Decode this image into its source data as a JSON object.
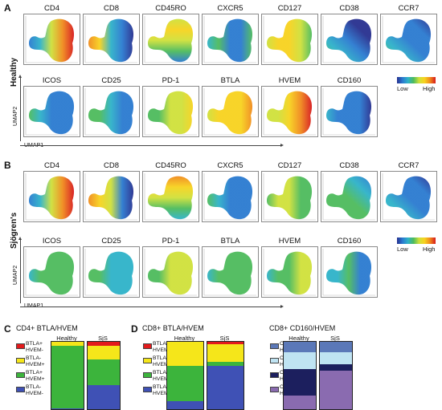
{
  "panel_letters": {
    "a": "A",
    "b": "B",
    "c": "C",
    "d": "D"
  },
  "cohorts": {
    "healthy": "Healthy",
    "sjogren": "Sjögren's"
  },
  "markers_row1": [
    "CD4",
    "CD8",
    "CD45RO",
    "CXCR5",
    "CD127",
    "CD38",
    "CCR7"
  ],
  "markers_row2": [
    "ICOS",
    "CD25",
    "PD-1",
    "BTLA",
    "HVEM",
    "CD160"
  ],
  "axes": {
    "umap1": "UMAP1",
    "umap2": "UMAP2"
  },
  "color_scale": {
    "low": "Low",
    "high": "High",
    "colors": [
      "#27308f",
      "#2a7ad0",
      "#2eb2c8",
      "#4dbb5c",
      "#cfe03a",
      "#f7d21e",
      "#f08a1c",
      "#d7191c"
    ]
  },
  "section_c": {
    "title": "CD4+ BTLA/HVEM"
  },
  "section_d1": {
    "title": "CD8+ BTLA/HVEM"
  },
  "section_d2": {
    "title": "CD8+ CD160/HVEM"
  },
  "group_labels": {
    "healthy": "Healthy",
    "sjs": "SjS"
  },
  "chart_data": [
    {
      "type": "bar",
      "title": "CD4+ BTLA/HVEM",
      "categories": [
        "Healthy",
        "SjS"
      ],
      "series": [
        {
          "name": "BTLA+ HVEM-",
          "color": "#e31a1c",
          "values": [
            0,
            6
          ]
        },
        {
          "name": "BTLA- HVEM+",
          "color": "#f5e61a",
          "values": [
            6,
            20
          ]
        },
        {
          "name": "BTLA+ HVEM+",
          "color": "#3cb43c",
          "values": [
            93,
            38
          ]
        },
        {
          "name": "BTLA- HVEM-",
          "color": "#3f51b5",
          "values": [
            1,
            36
          ]
        }
      ]
    },
    {
      "type": "bar",
      "title": "CD8+ BTLA/HVEM",
      "categories": [
        "Healthy",
        "SjS"
      ],
      "series": [
        {
          "name": "BTLA+ HVEM-",
          "color": "#e31a1c",
          "values": [
            0,
            4
          ]
        },
        {
          "name": "BTLA- HVEM+",
          "color": "#f5e61a",
          "values": [
            36,
            26
          ]
        },
        {
          "name": "BTLA+ HVEM+",
          "color": "#3cb43c",
          "values": [
            52,
            6
          ]
        },
        {
          "name": "BTLA- HVEM-",
          "color": "#3f51b5",
          "values": [
            12,
            64
          ]
        }
      ]
    },
    {
      "type": "bar",
      "title": "CD8+ CD160/HVEM",
      "categories": [
        "Healthy",
        "SjS"
      ],
      "series": [
        {
          "name": "CD160+ HVEM-",
          "color": "#5b78b8",
          "values": [
            16,
            16
          ]
        },
        {
          "name": "CD160- HVEM+",
          "color": "#bfe3f2",
          "values": [
            24,
            17
          ]
        },
        {
          "name": "CD160+ HVEM+",
          "color": "#1c1f5e",
          "values": [
            40,
            10
          ]
        },
        {
          "name": "CD160- HVEM-",
          "color": "#8a6bb0",
          "values": [
            20,
            57
          ]
        }
      ]
    }
  ]
}
